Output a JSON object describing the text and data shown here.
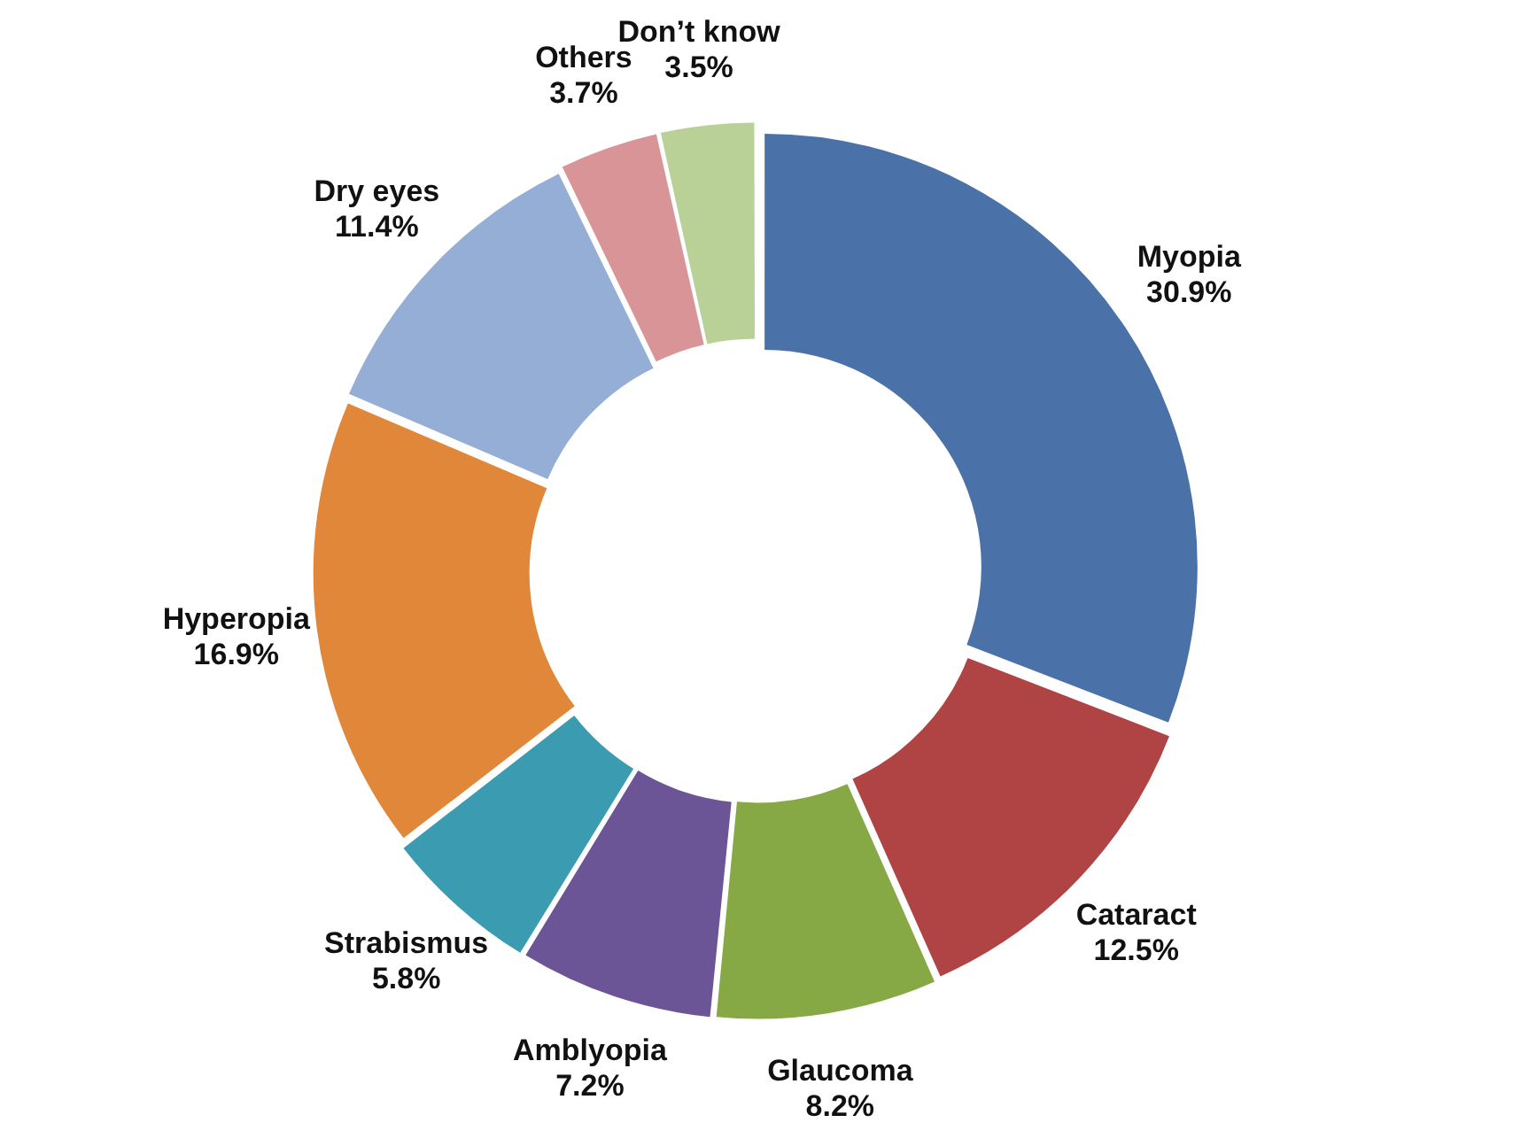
{
  "chart_data": {
    "type": "donut",
    "categories": [
      "Myopia",
      "Cataract",
      "Glaucoma",
      "Amblyopia",
      "Strabismus",
      "Hyperopia",
      "Dry eyes",
      "Others",
      "Don’t know"
    ],
    "values": [
      30.9,
      12.5,
      8.2,
      7.2,
      5.8,
      16.9,
      11.4,
      3.7,
      3.5
    ],
    "value_labels": [
      "30.9%",
      "12.5%",
      "8.2%",
      "7.2%",
      "5.8%",
      "16.9%",
      "11.4%",
      "3.7%",
      "3.5%"
    ],
    "colors": [
      "#4a72a8",
      "#b04444",
      "#86a845",
      "#6b5596",
      "#3b9bb0",
      "#e0873a",
      "#95aed6",
      "#d99497",
      "#b9d196"
    ],
    "legend": false
  }
}
